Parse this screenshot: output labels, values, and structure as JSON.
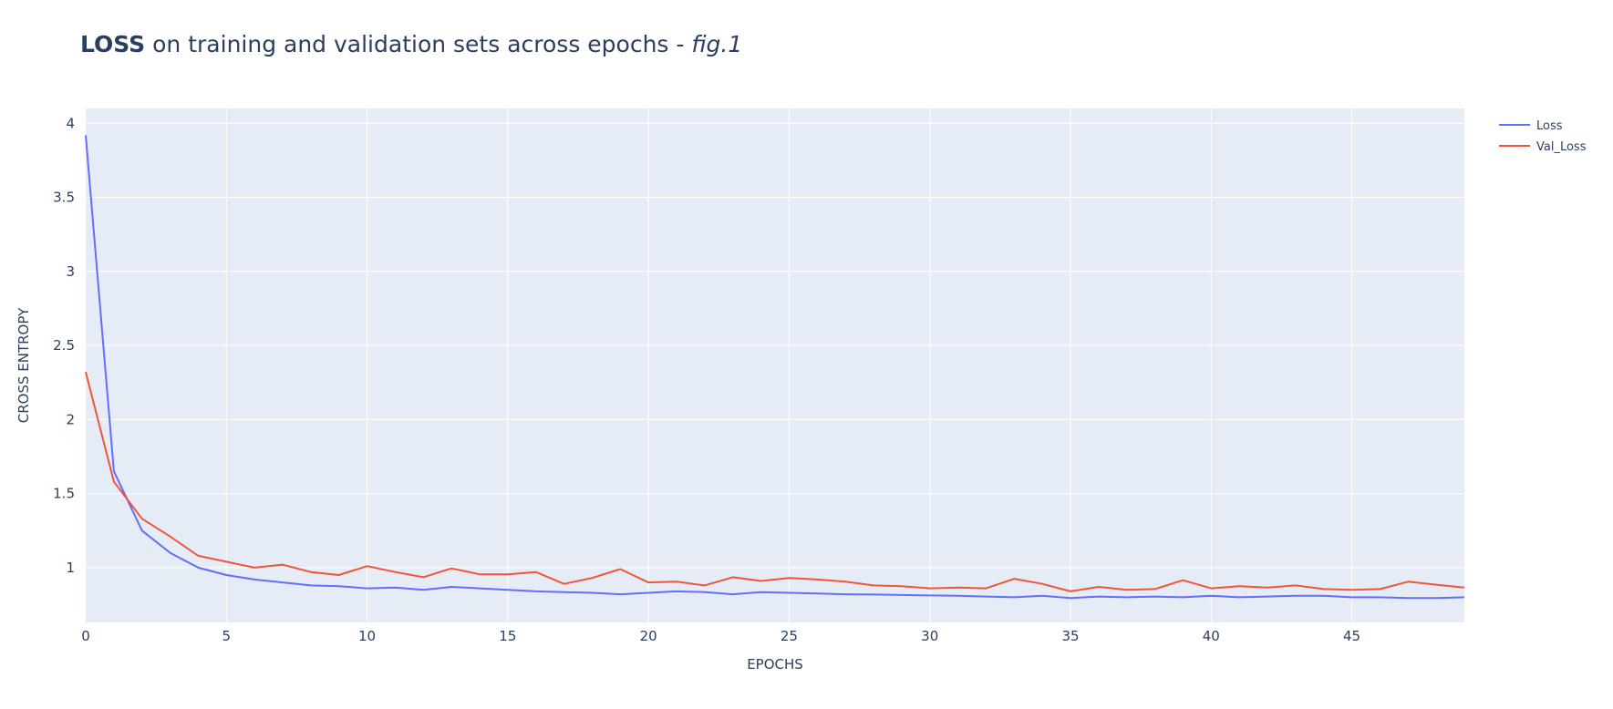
{
  "title": {
    "bold": "LOSS",
    "middle": " on training and validation sets across epochs - ",
    "italic": "fig.1"
  },
  "chart_data": {
    "type": "line",
    "xlabel": "EPOCHS",
    "ylabel": "CROSS ENTROPY",
    "xlim": [
      0,
      49
    ],
    "ylim": [
      0.63,
      4.1
    ],
    "x_ticks": [
      0,
      5,
      10,
      15,
      20,
      25,
      30,
      35,
      40,
      45
    ],
    "x_tick_labels": [
      "0",
      "5",
      "10",
      "15",
      "20",
      "25",
      "30",
      "35",
      "40",
      "45"
    ],
    "y_ticks": [
      1,
      1.5,
      2,
      2.5,
      3,
      3.5,
      4
    ],
    "y_tick_labels": [
      "1",
      "1.5",
      "2",
      "2.5",
      "3",
      "3.5",
      "4"
    ],
    "grid": true,
    "legend_position": "top-right",
    "x": [
      0,
      1,
      2,
      3,
      4,
      5,
      6,
      7,
      8,
      9,
      10,
      11,
      12,
      13,
      14,
      15,
      16,
      17,
      18,
      19,
      20,
      21,
      22,
      23,
      24,
      25,
      26,
      27,
      28,
      29,
      30,
      31,
      32,
      33,
      34,
      35,
      36,
      37,
      38,
      39,
      40,
      41,
      42,
      43,
      44,
      45,
      46,
      47,
      48,
      49
    ],
    "series": [
      {
        "name": "Loss",
        "color": "#636efa",
        "values": [
          3.92,
          1.65,
          1.25,
          1.1,
          1.0,
          0.95,
          0.92,
          0.9,
          0.88,
          0.875,
          0.86,
          0.865,
          0.85,
          0.87,
          0.86,
          0.85,
          0.84,
          0.835,
          0.83,
          0.82,
          0.83,
          0.84,
          0.835,
          0.82,
          0.835,
          0.83,
          0.825,
          0.82,
          0.818,
          0.815,
          0.812,
          0.81,
          0.805,
          0.8,
          0.81,
          0.795,
          0.805,
          0.8,
          0.805,
          0.8,
          0.81,
          0.8,
          0.805,
          0.81,
          0.81,
          0.8,
          0.8,
          0.795,
          0.795,
          0.8
        ]
      },
      {
        "name": "Val_Loss",
        "color": "#ef553b",
        "values": [
          2.32,
          1.58,
          1.33,
          1.21,
          1.08,
          1.04,
          1.0,
          1.02,
          0.97,
          0.95,
          1.01,
          0.97,
          0.935,
          0.995,
          0.955,
          0.955,
          0.97,
          0.89,
          0.93,
          0.99,
          0.9,
          0.905,
          0.88,
          0.935,
          0.91,
          0.93,
          0.92,
          0.905,
          0.88,
          0.875,
          0.86,
          0.865,
          0.86,
          0.925,
          0.89,
          0.84,
          0.87,
          0.85,
          0.855,
          0.915,
          0.86,
          0.875,
          0.865,
          0.88,
          0.855,
          0.85,
          0.855,
          0.905,
          0.885,
          0.865
        ]
      }
    ]
  }
}
